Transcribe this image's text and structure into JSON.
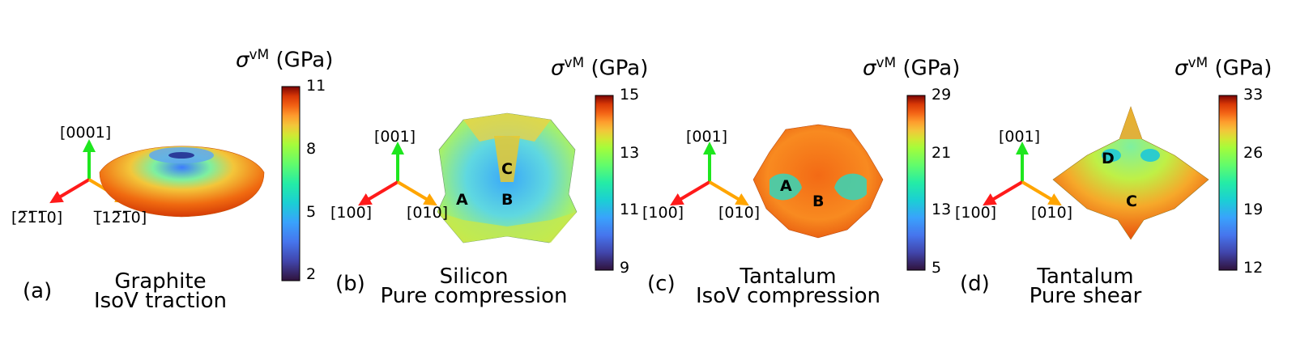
{
  "colorbar_title": {
    "symbol": "σ",
    "superscript": "vM",
    "unit": "(GPa)"
  },
  "panels": [
    {
      "letter": "(a)",
      "material": "Graphite",
      "loading": "IsoV traction",
      "axes": {
        "z": "[0001]",
        "x": "[2̅1̅1̅0]",
        "y": "[̅12̅1̅0]"
      },
      "colorbar_ticks": [
        "11",
        "8",
        "5",
        "2"
      ],
      "points": []
    },
    {
      "letter": "(b)",
      "material": "Silicon",
      "loading": "Pure compression",
      "axes": {
        "z": "[001]",
        "x": "[100]",
        "y": "[010]"
      },
      "colorbar_ticks": [
        "15",
        "13",
        "11",
        "9"
      ],
      "points": [
        "A",
        "B",
        "C"
      ]
    },
    {
      "letter": "(c)",
      "material": "Tantalum",
      "loading": "IsoV compression",
      "axes": {
        "z": "[001]",
        "x": "[100]",
        "y": "[010]"
      },
      "colorbar_ticks": [
        "29",
        "21",
        "13",
        "5"
      ],
      "points": [
        "A",
        "B"
      ]
    },
    {
      "letter": "(d)",
      "material": "Tantalum",
      "loading": "Pure shear",
      "axes": {
        "z": "[001]",
        "x": "[100]",
        "y": "[010]"
      },
      "colorbar_ticks": [
        "33",
        "26",
        "19",
        "12"
      ],
      "points": [
        "D",
        "C"
      ]
    }
  ],
  "colors": {
    "x_axis": "#ff1a1a",
    "y_axis": "#ffa500",
    "z_axis": "#1ee61e"
  }
}
